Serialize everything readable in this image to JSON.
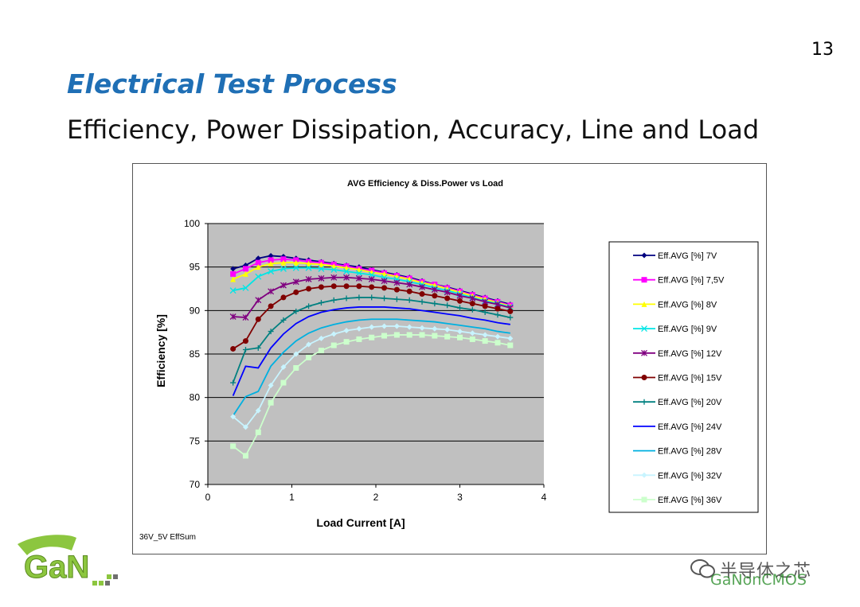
{
  "page_number": "13",
  "title": "Electrical Test Process",
  "subtitle": "Efficiency, Power Dissipation, Accuracy, Line and Load",
  "logo_text": "GaN",
  "watermark": {
    "line1": "半导体之芯",
    "line2": "GaNonCMOS"
  },
  "chart_data": {
    "type": "line",
    "title": "AVG Efficiency & Diss.Power vs Load",
    "xlabel": "Load Current [A]",
    "ylabel": "Efficiency [%]",
    "xlim": [
      0,
      4
    ],
    "ylim": [
      70,
      100
    ],
    "xticks": [
      0,
      1,
      2,
      3,
      4
    ],
    "yticks": [
      70,
      75,
      80,
      85,
      90,
      95,
      100
    ],
    "grid": true,
    "plot_background": "#c0c0c0",
    "legend_position": "right",
    "footnote": "36V_5V EffSum",
    "x": [
      0.3,
      0.45,
      0.6,
      0.75,
      0.9,
      1.05,
      1.2,
      1.35,
      1.5,
      1.65,
      1.8,
      1.95,
      2.1,
      2.25,
      2.4,
      2.55,
      2.7,
      2.85,
      3.0,
      3.15,
      3.3,
      3.45,
      3.6
    ],
    "series": [
      {
        "name": "Eff.AVG [%] 7V",
        "color": "#000080",
        "marker": "diamond",
        "values": [
          94.8,
          95.2,
          96.0,
          96.3,
          96.2,
          96.0,
          95.8,
          95.6,
          95.4,
          95.2,
          95.0,
          94.7,
          94.4,
          94.1,
          93.8,
          93.4,
          93.0,
          92.7,
          92.3,
          91.9,
          91.5,
          91.1,
          90.7
        ]
      },
      {
        "name": "Eff.AVG [%] 7,5V",
        "color": "#ff00ff",
        "marker": "square",
        "values": [
          94.2,
          94.8,
          95.5,
          95.8,
          95.9,
          95.8,
          95.6,
          95.5,
          95.3,
          95.1,
          94.8,
          94.6,
          94.3,
          94.0,
          93.7,
          93.3,
          93.0,
          92.6,
          92.2,
          91.8,
          91.4,
          91.0,
          90.6
        ]
      },
      {
        "name": "Eff.AVG [%] 8V",
        "color": "#ffff00",
        "marker": "triangle",
        "values": [
          93.6,
          94.2,
          95.0,
          95.4,
          95.5,
          95.5,
          95.4,
          95.3,
          95.1,
          94.9,
          94.7,
          94.4,
          94.2,
          93.9,
          93.6,
          93.2,
          92.9,
          92.5,
          92.1,
          91.7,
          91.3,
          90.9,
          90.5
        ]
      },
      {
        "name": "Eff.AVG [%] 9V",
        "color": "#00e5e5",
        "marker": "x",
        "values": [
          92.3,
          92.6,
          93.9,
          94.5,
          94.8,
          94.9,
          94.9,
          94.8,
          94.7,
          94.5,
          94.3,
          94.1,
          93.8,
          93.6,
          93.3,
          93.0,
          92.6,
          92.3,
          91.9,
          91.5,
          91.1,
          90.8,
          90.4
        ]
      },
      {
        "name": "Eff.AVG [%] 12V",
        "color": "#800080",
        "marker": "star",
        "values": [
          89.3,
          89.2,
          91.2,
          92.2,
          92.9,
          93.3,
          93.6,
          93.7,
          93.8,
          93.8,
          93.7,
          93.6,
          93.4,
          93.2,
          93.0,
          92.7,
          92.4,
          92.1,
          91.7,
          91.4,
          91.0,
          90.7,
          90.3
        ]
      },
      {
        "name": "Eff.AVG [%] 15V",
        "color": "#800000",
        "marker": "circle",
        "values": [
          85.6,
          86.5,
          89.0,
          90.5,
          91.5,
          92.1,
          92.5,
          92.7,
          92.8,
          92.8,
          92.8,
          92.7,
          92.6,
          92.4,
          92.2,
          91.9,
          91.7,
          91.4,
          91.1,
          90.8,
          90.5,
          90.2,
          89.9
        ]
      },
      {
        "name": "Eff.AVG [%] 20V",
        "color": "#008080",
        "marker": "plus",
        "values": [
          81.7,
          85.5,
          85.7,
          87.6,
          88.9,
          89.9,
          90.5,
          90.9,
          91.2,
          91.4,
          91.5,
          91.5,
          91.4,
          91.3,
          91.2,
          91.0,
          90.8,
          90.6,
          90.3,
          90.1,
          89.8,
          89.5,
          89.2
        ]
      },
      {
        "name": "Eff.AVG [%] 24V",
        "color": "#0000ff",
        "marker": "none",
        "values": [
          80.2,
          83.6,
          83.4,
          85.7,
          87.3,
          88.5,
          89.3,
          89.8,
          90.1,
          90.3,
          90.4,
          90.4,
          90.4,
          90.3,
          90.2,
          90.0,
          89.8,
          89.6,
          89.4,
          89.1,
          88.9,
          88.6,
          88.4
        ]
      },
      {
        "name": "Eff.AVG [%] 28V",
        "color": "#00b0e0",
        "marker": "none",
        "values": [
          77.9,
          80.1,
          80.7,
          83.6,
          85.2,
          86.5,
          87.4,
          88.0,
          88.4,
          88.7,
          88.9,
          89.0,
          89.0,
          89.0,
          88.9,
          88.8,
          88.7,
          88.5,
          88.3,
          88.1,
          87.9,
          87.6,
          87.4
        ]
      },
      {
        "name": "Eff.AVG [%] 32V",
        "color": "#c8f4ff",
        "marker": "diamond",
        "values": [
          77.8,
          76.6,
          78.5,
          81.4,
          83.5,
          85.0,
          86.1,
          86.8,
          87.3,
          87.7,
          87.9,
          88.1,
          88.2,
          88.2,
          88.1,
          88.0,
          87.9,
          87.8,
          87.6,
          87.4,
          87.2,
          87.0,
          86.8
        ]
      },
      {
        "name": "Eff.AVG [%] 36V",
        "color": "#ccffcc",
        "marker": "square",
        "values": [
          74.4,
          73.3,
          76.0,
          79.4,
          81.7,
          83.4,
          84.6,
          85.4,
          86.0,
          86.4,
          86.7,
          86.9,
          87.1,
          87.2,
          87.2,
          87.2,
          87.1,
          87.0,
          86.9,
          86.7,
          86.5,
          86.3,
          86.0
        ]
      }
    ]
  }
}
